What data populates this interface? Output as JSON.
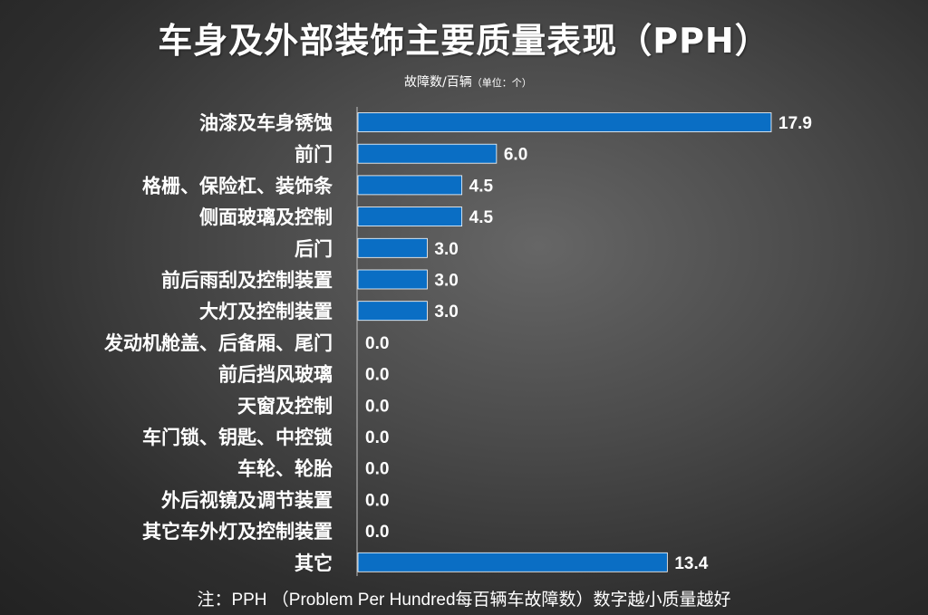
{
  "title": "车身及外部装饰主要质量表现（PPH）",
  "subtitle": {
    "main": "故障数/百辆",
    "unit": "（单位：个）"
  },
  "footnote": "注：PPH （Problem Per Hundred每百辆车故障数）数字越小质量越好",
  "colors": {
    "bar": "#0a6ec4",
    "bar_edge": "#ffffff",
    "text": "#ffffff",
    "axis": "#bfbfbf"
  },
  "chart_data": {
    "type": "bar",
    "orientation": "horizontal",
    "title": "车身及外部装饰主要质量表现（PPH）",
    "ylabel": "",
    "xlabel": "故障数/百辆（单位：个）",
    "xlim": [
      0,
      17.9
    ],
    "grid": false,
    "legend": "none",
    "categories": [
      "油漆及车身锈蚀",
      "前门",
      "格栅、保险杠、装饰条",
      "侧面玻璃及控制",
      "后门",
      "前后雨刮及控制装置",
      "大灯及控制装置",
      "发动机舱盖、后备厢、尾门",
      "前后挡风玻璃",
      "天窗及控制",
      "车门锁、钥匙、中控锁",
      "车轮、轮胎",
      "外后视镜及调节装置",
      "其它车外灯及控制装置",
      "其它"
    ],
    "values": [
      17.9,
      6.0,
      4.5,
      4.5,
      3.0,
      3.0,
      3.0,
      0.0,
      0.0,
      0.0,
      0.0,
      0.0,
      0.0,
      0.0,
      13.4
    ],
    "value_labels": [
      "17.9",
      "6.0",
      "4.5",
      "4.5",
      "3.0",
      "3.0",
      "3.0",
      "0.0",
      "0.0",
      "0.0",
      "0.0",
      "0.0",
      "0.0",
      "0.0",
      "13.4"
    ]
  }
}
